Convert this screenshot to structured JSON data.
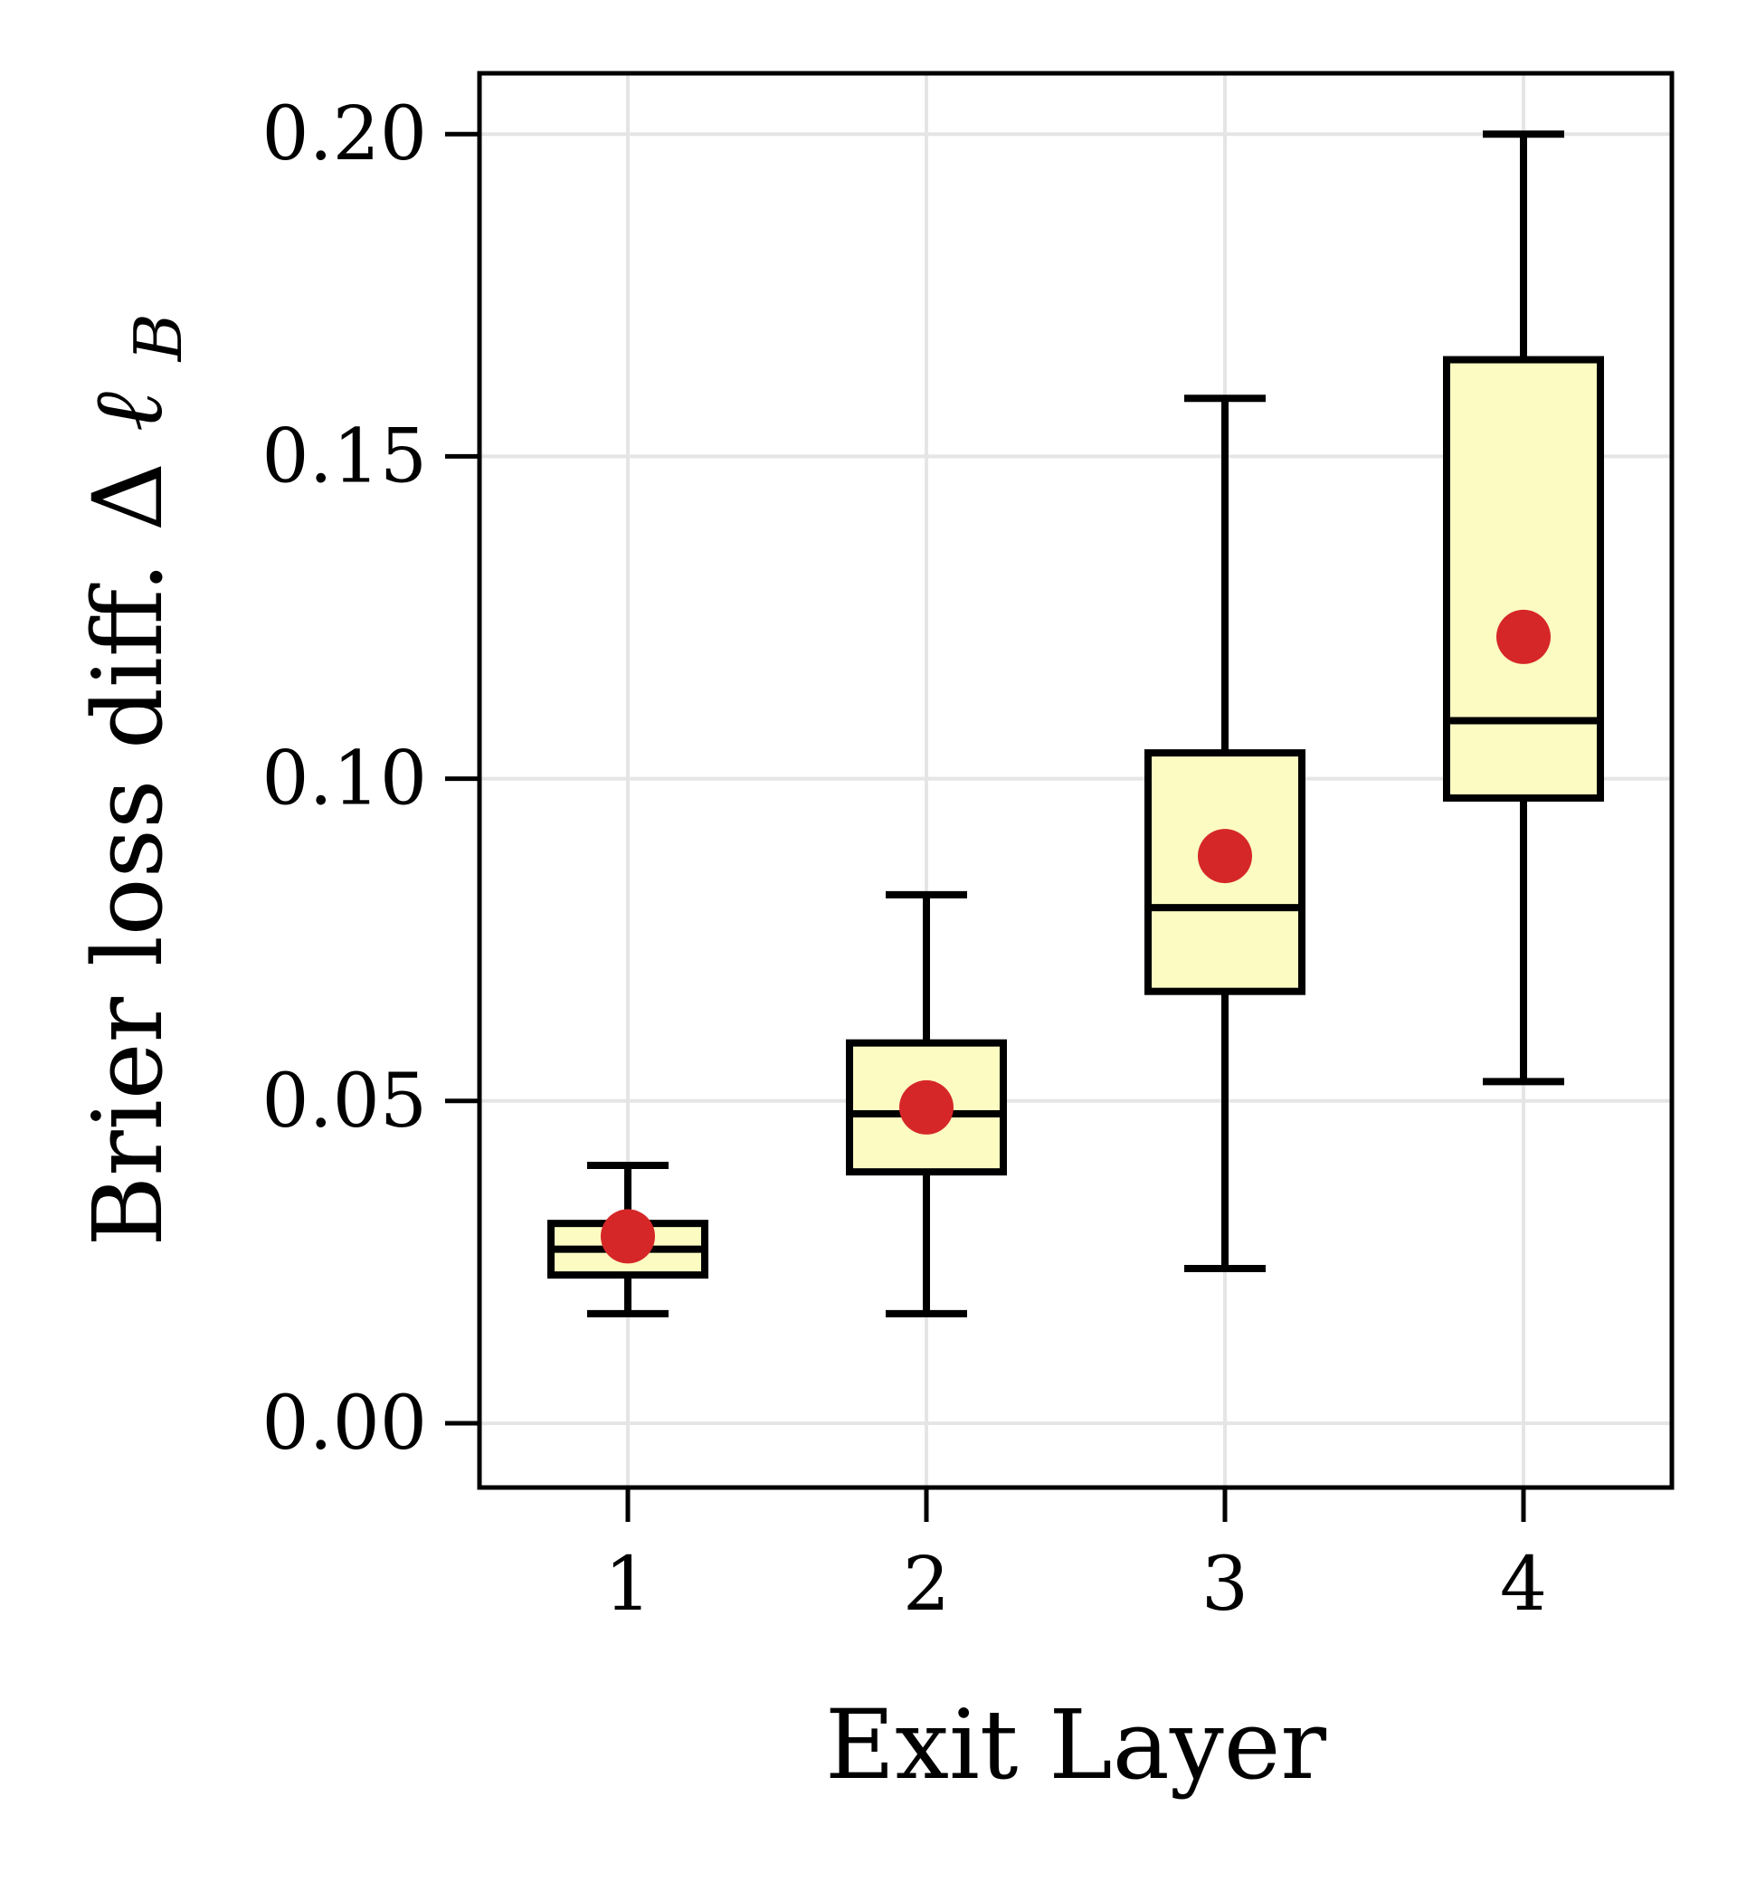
{
  "chart_data": {
    "type": "boxplot",
    "xlabel": "Exit Layer",
    "ylabel": {
      "text": "Brier loss diff. Δ",
      "symbol": "ℓ",
      "subscript": "B"
    },
    "categories": [
      "1",
      "2",
      "3",
      "4"
    ],
    "ylim": [
      -0.01,
      0.21
    ],
    "yticks": [
      0.0,
      0.05,
      0.1,
      0.15,
      0.2
    ],
    "ytick_labels": [
      "0.00",
      "0.05",
      "0.10",
      "0.15",
      "0.20"
    ],
    "grid": true,
    "series": [
      {
        "category": "1",
        "whisker_low": 0.017,
        "q1": 0.023,
        "median": 0.027,
        "q3": 0.031,
        "whisker_high": 0.04,
        "mean": 0.029
      },
      {
        "category": "2",
        "whisker_low": 0.017,
        "q1": 0.039,
        "median": 0.048,
        "q3": 0.059,
        "whisker_high": 0.082,
        "mean": 0.049
      },
      {
        "category": "3",
        "whisker_low": 0.024,
        "q1": 0.067,
        "median": 0.08,
        "q3": 0.104,
        "whisker_high": 0.159,
        "mean": 0.088
      },
      {
        "category": "4",
        "whisker_low": 0.053,
        "q1": 0.097,
        "median": 0.109,
        "q3": 0.165,
        "whisker_high": 0.2,
        "mean": 0.122
      }
    ],
    "colors": {
      "box_fill": "#fcfcc2",
      "box_edge": "#000000",
      "mean_marker": "#d62728",
      "grid": "#e5e5e5"
    }
  }
}
